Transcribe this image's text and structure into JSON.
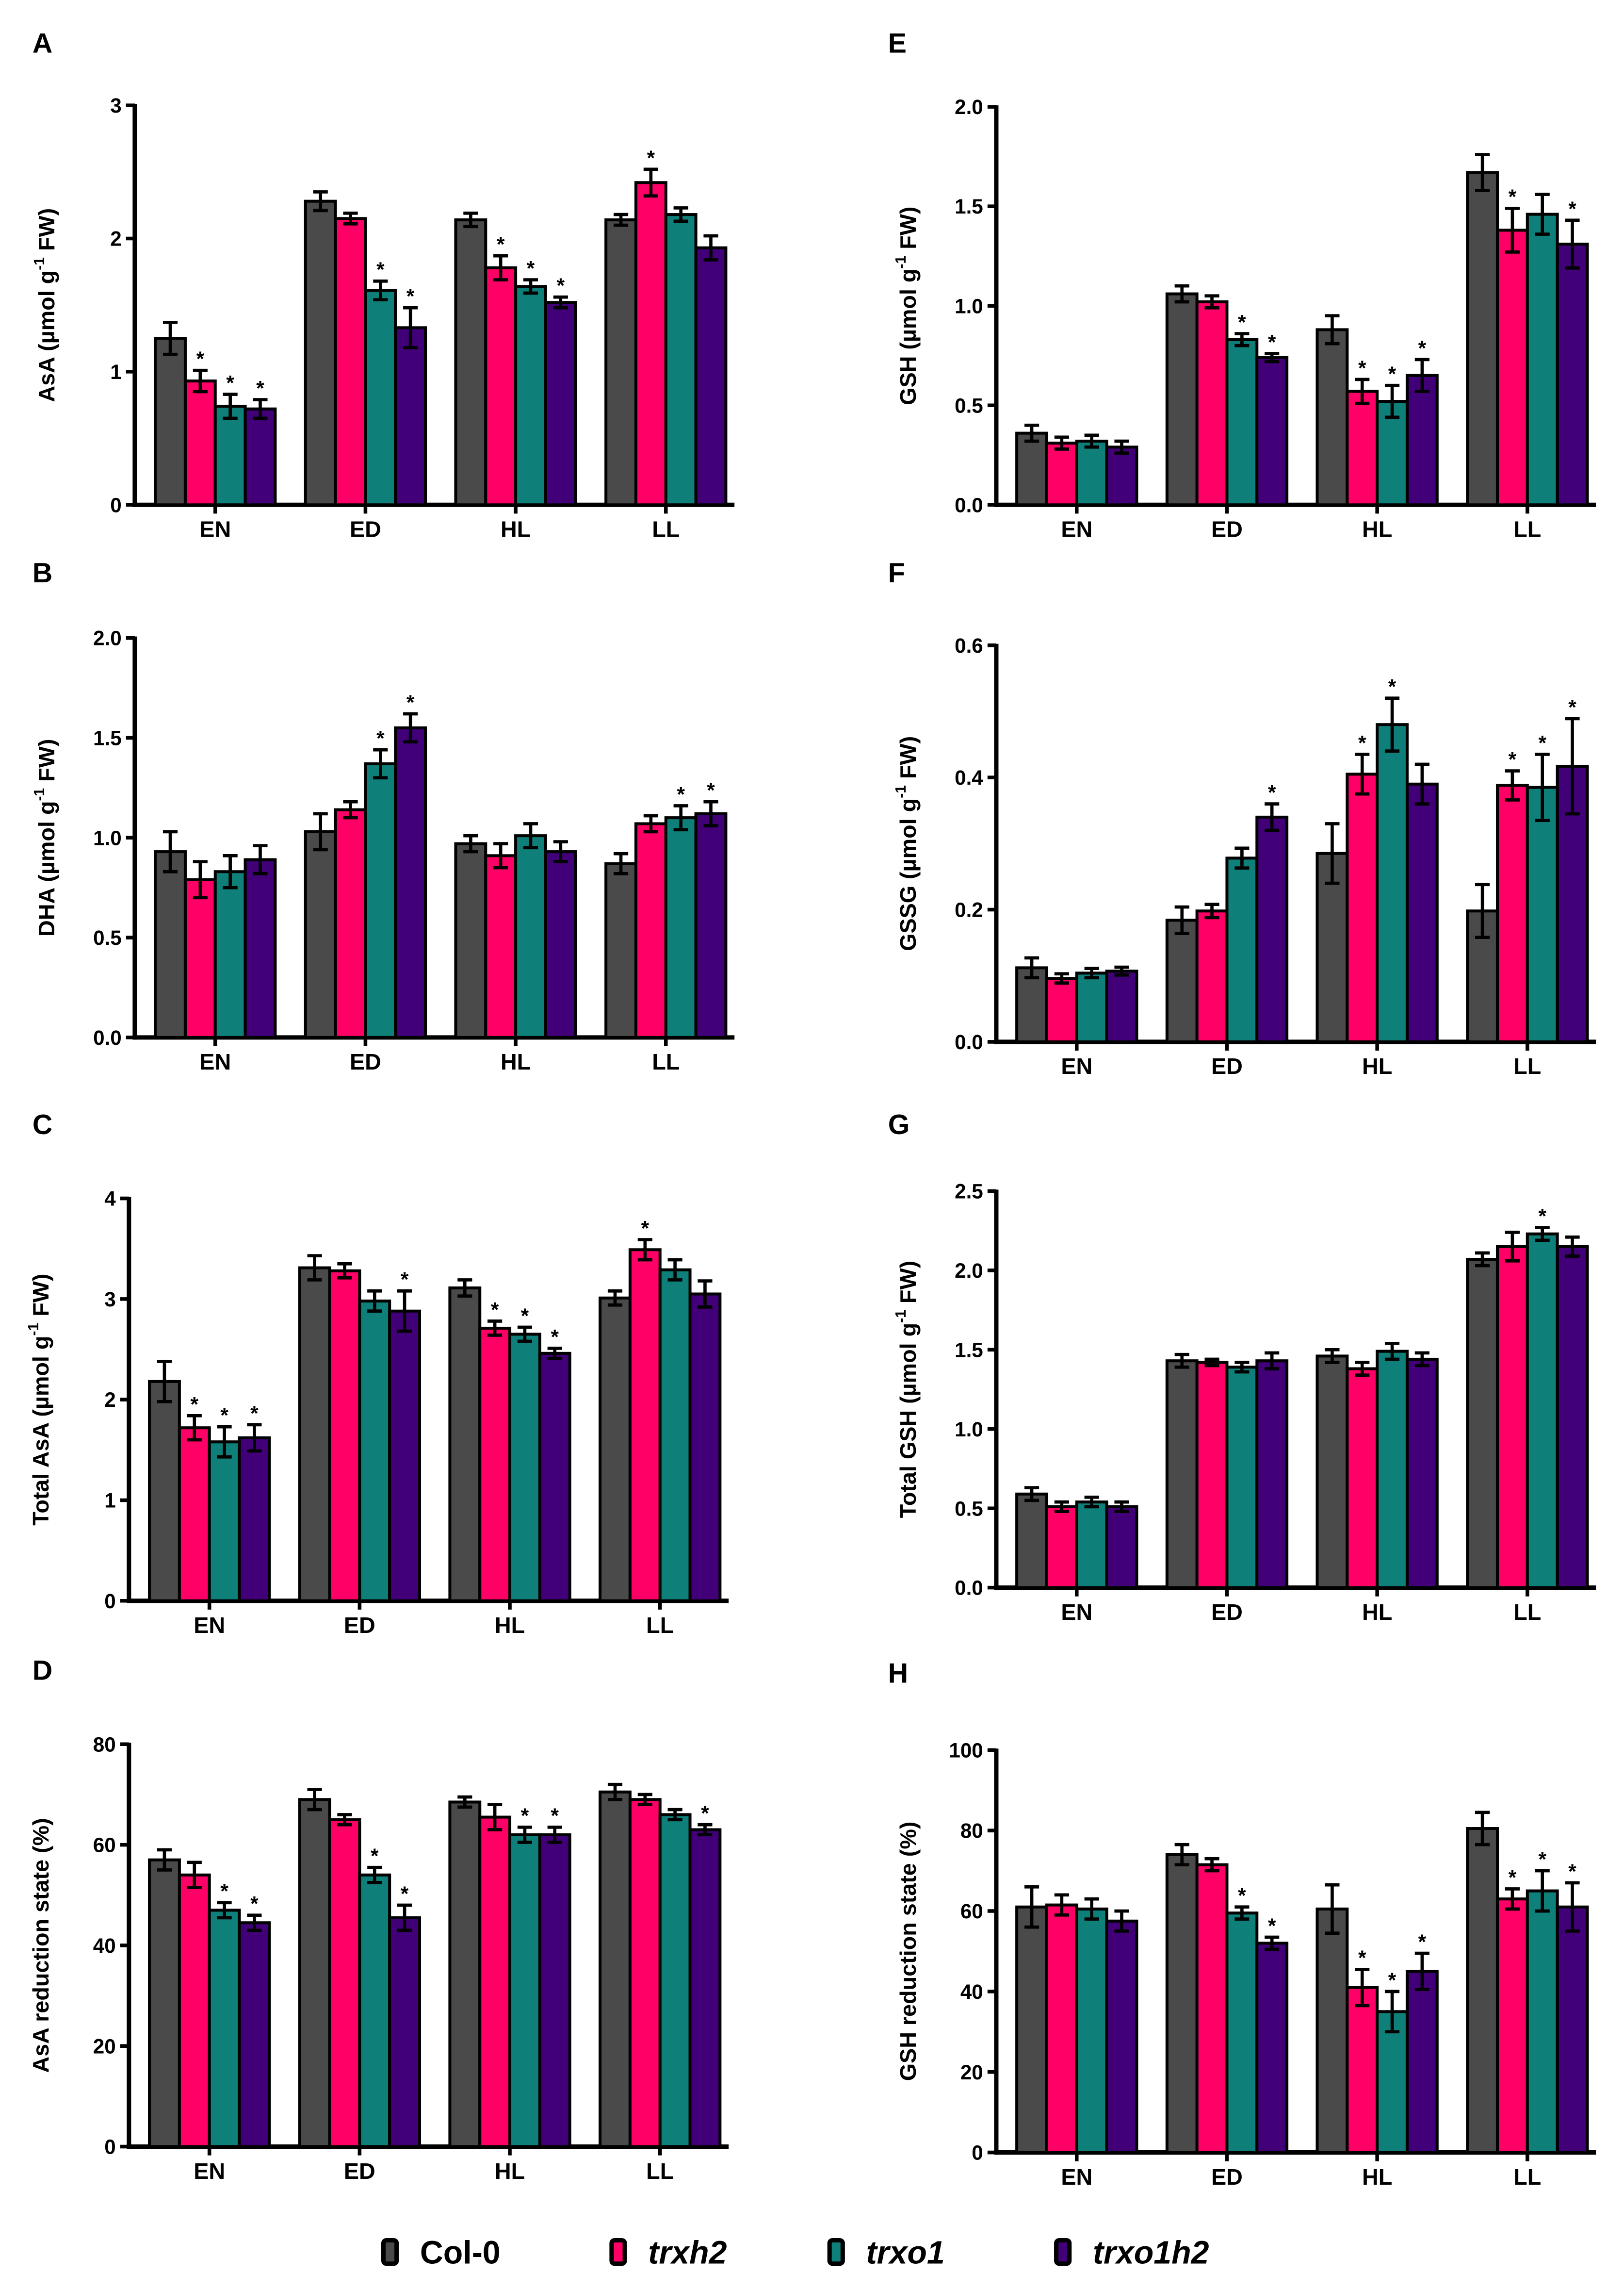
{
  "colors": {
    "Col-0": "#4a4a4a",
    "trxh2": "#ff0066",
    "trxo1": "#0f7f7a",
    "trxo1h2": "#420078"
  },
  "legend": [
    {
      "label": "Col-0",
      "italic": false
    },
    {
      "label": "trxh2",
      "italic": true
    },
    {
      "label": "trxo1",
      "italic": true
    },
    {
      "label": "trxo1h2",
      "italic": true
    }
  ],
  "chart_data": [
    {
      "panel": "A",
      "type": "bar",
      "ylabel": "AsA (µmol g-1 FW)",
      "ylabel_main": "AsA (µmol g",
      "ylabel_tail": " FW)",
      "ylim": [
        0,
        3
      ],
      "yticks": [
        "0",
        "1",
        "2",
        "3"
      ],
      "ytick_values": [
        0,
        1,
        2,
        3
      ],
      "categories": [
        "EN",
        "ED",
        "HL",
        "LL"
      ],
      "series": [
        {
          "name": "Col-0",
          "values": [
            1.25,
            2.28,
            2.14,
            2.14
          ],
          "errors": [
            0.12,
            0.07,
            0.05,
            0.04
          ],
          "sig": [
            0,
            0,
            0,
            0
          ]
        },
        {
          "name": "trxh2",
          "values": [
            0.93,
            2.15,
            1.78,
            2.42
          ],
          "errors": [
            0.08,
            0.04,
            0.09,
            0.1
          ],
          "sig": [
            1,
            0,
            1,
            1
          ]
        },
        {
          "name": "trxo1",
          "values": [
            0.74,
            1.61,
            1.64,
            2.18
          ],
          "errors": [
            0.09,
            0.07,
            0.05,
            0.05
          ],
          "sig": [
            1,
            1,
            1,
            0
          ]
        },
        {
          "name": "trxo1h2",
          "values": [
            0.72,
            1.33,
            1.52,
            1.93
          ],
          "errors": [
            0.07,
            0.15,
            0.04,
            0.09
          ],
          "sig": [
            1,
            1,
            1,
            0
          ]
        }
      ]
    },
    {
      "panel": "B",
      "type": "bar",
      "ylabel": "DHA (µmol g-1 FW)",
      "ylabel_main": "DHA (µmol g",
      "ylabel_tail": " FW)",
      "ylim": [
        0,
        2
      ],
      "yticks": [
        "0.0",
        "0.5",
        "1.0",
        "1.5",
        "2.0"
      ],
      "ytick_values": [
        0,
        0.5,
        1,
        1.5,
        2
      ],
      "categories": [
        "EN",
        "ED",
        "HL",
        "LL"
      ],
      "series": [
        {
          "name": "Col-0",
          "values": [
            0.93,
            1.03,
            0.97,
            0.87
          ],
          "errors": [
            0.1,
            0.09,
            0.04,
            0.05
          ],
          "sig": [
            0,
            0,
            0,
            0
          ]
        },
        {
          "name": "trxh2",
          "values": [
            0.79,
            1.14,
            0.91,
            1.07
          ],
          "errors": [
            0.09,
            0.04,
            0.06,
            0.04
          ],
          "sig": [
            0,
            0,
            0,
            0
          ]
        },
        {
          "name": "trxo1",
          "values": [
            0.83,
            1.37,
            1.01,
            1.1
          ],
          "errors": [
            0.08,
            0.07,
            0.06,
            0.06
          ],
          "sig": [
            0,
            1,
            0,
            1
          ]
        },
        {
          "name": "trxo1h2",
          "values": [
            0.89,
            1.55,
            0.93,
            1.12
          ],
          "errors": [
            0.07,
            0.07,
            0.05,
            0.06
          ],
          "sig": [
            0,
            1,
            0,
            1
          ]
        }
      ]
    },
    {
      "panel": "C",
      "type": "bar",
      "ylabel": "Total AsA (µmol g-1 FW)",
      "ylabel_main": "Total AsA (µmol g",
      "ylabel_tail": " FW)",
      "ylim": [
        0,
        4
      ],
      "yticks": [
        "0",
        "1",
        "2",
        "3",
        "4"
      ],
      "ytick_values": [
        0,
        1,
        2,
        3,
        4
      ],
      "categories": [
        "EN",
        "ED",
        "HL",
        "LL"
      ],
      "series": [
        {
          "name": "Col-0",
          "values": [
            2.18,
            3.31,
            3.11,
            3.01
          ],
          "errors": [
            0.2,
            0.12,
            0.08,
            0.07
          ],
          "sig": [
            0,
            0,
            0,
            0
          ]
        },
        {
          "name": "trxh2",
          "values": [
            1.72,
            3.28,
            2.71,
            3.49
          ],
          "errors": [
            0.12,
            0.07,
            0.07,
            0.1
          ],
          "sig": [
            1,
            0,
            1,
            1
          ]
        },
        {
          "name": "trxo1",
          "values": [
            1.58,
            2.98,
            2.65,
            3.29
          ],
          "errors": [
            0.15,
            0.1,
            0.07,
            0.1
          ],
          "sig": [
            1,
            0,
            1,
            0
          ]
        },
        {
          "name": "trxo1h2",
          "values": [
            1.62,
            2.88,
            2.46,
            3.05
          ],
          "errors": [
            0.13,
            0.2,
            0.05,
            0.13
          ],
          "sig": [
            1,
            1,
            1,
            0
          ]
        }
      ]
    },
    {
      "panel": "D",
      "type": "bar",
      "ylabel": "AsA reduction state (%)",
      "ylabel_main": "AsA reduction state (%)",
      "ylabel_tail": "",
      "ylim": [
        0,
        80
      ],
      "yticks": [
        "0",
        "20",
        "40",
        "60",
        "80"
      ],
      "ytick_values": [
        0,
        20,
        40,
        60,
        80
      ],
      "categories": [
        "EN",
        "ED",
        "HL",
        "LL"
      ],
      "series": [
        {
          "name": "Col-0",
          "values": [
            57,
            69,
            68.5,
            70.5
          ],
          "errors": [
            2,
            2,
            1,
            1.5
          ],
          "sig": [
            0,
            0,
            0,
            0
          ]
        },
        {
          "name": "trxh2",
          "values": [
            54,
            65,
            65.5,
            69
          ],
          "errors": [
            2.5,
            1,
            2.5,
            1
          ],
          "sig": [
            0,
            0,
            0,
            0
          ]
        },
        {
          "name": "trxo1",
          "values": [
            47,
            54,
            62,
            66
          ],
          "errors": [
            1.5,
            1.5,
            1.5,
            1
          ],
          "sig": [
            1,
            1,
            1,
            0
          ]
        },
        {
          "name": "trxo1h2",
          "values": [
            44.5,
            45.5,
            62,
            63
          ],
          "errors": [
            1.5,
            2.5,
            1.5,
            1
          ],
          "sig": [
            1,
            1,
            1,
            1
          ]
        }
      ]
    },
    {
      "panel": "E",
      "type": "bar",
      "ylabel": "GSH (µmol g-1 FW)",
      "ylabel_main": "GSH (µmol g",
      "ylabel_tail": " FW)",
      "ylim": [
        0,
        2
      ],
      "yticks": [
        "0.0",
        "0.5",
        "1.0",
        "1.5",
        "2.0"
      ],
      "ytick_values": [
        0,
        0.5,
        1,
        1.5,
        2
      ],
      "categories": [
        "EN",
        "ED",
        "HL",
        "LL"
      ],
      "series": [
        {
          "name": "Col-0",
          "values": [
            0.36,
            1.06,
            0.88,
            1.67
          ],
          "errors": [
            0.04,
            0.04,
            0.07,
            0.09
          ],
          "sig": [
            0,
            0,
            0,
            0
          ]
        },
        {
          "name": "trxh2",
          "values": [
            0.31,
            1.02,
            0.57,
            1.38
          ],
          "errors": [
            0.03,
            0.03,
            0.06,
            0.11
          ],
          "sig": [
            0,
            0,
            1,
            1
          ]
        },
        {
          "name": "trxo1",
          "values": [
            0.32,
            0.83,
            0.52,
            1.46
          ],
          "errors": [
            0.03,
            0.03,
            0.08,
            0.1
          ],
          "sig": [
            0,
            1,
            1,
            0
          ]
        },
        {
          "name": "trxo1h2",
          "values": [
            0.29,
            0.74,
            0.65,
            1.31
          ],
          "errors": [
            0.03,
            0.02,
            0.08,
            0.12
          ],
          "sig": [
            0,
            1,
            1,
            1
          ]
        }
      ]
    },
    {
      "panel": "F",
      "type": "bar",
      "ylabel": "GSSG (µmol g-1 FW)",
      "ylabel_main": "GSSG (µmol g",
      "ylabel_tail": " FW)",
      "ylim": [
        0,
        0.6
      ],
      "yticks": [
        "0.0",
        "0.2",
        "0.4",
        "0.6"
      ],
      "ytick_values": [
        0,
        0.2,
        0.4,
        0.6
      ],
      "categories": [
        "EN",
        "ED",
        "HL",
        "LL"
      ],
      "series": [
        {
          "name": "Col-0",
          "values": [
            0.112,
            0.184,
            0.285,
            0.198
          ],
          "errors": [
            0.015,
            0.02,
            0.045,
            0.04
          ],
          "sig": [
            0,
            0,
            0,
            0
          ]
        },
        {
          "name": "trxh2",
          "values": [
            0.096,
            0.198,
            0.405,
            0.388
          ],
          "errors": [
            0.007,
            0.01,
            0.03,
            0.022
          ],
          "sig": [
            0,
            0,
            1,
            1
          ]
        },
        {
          "name": "trxo1",
          "values": [
            0.104,
            0.278,
            0.48,
            0.385
          ],
          "errors": [
            0.007,
            0.015,
            0.04,
            0.05
          ],
          "sig": [
            0,
            0,
            1,
            1
          ]
        },
        {
          "name": "trxo1h2",
          "values": [
            0.107,
            0.34,
            0.39,
            0.417
          ],
          "errors": [
            0.006,
            0.02,
            0.03,
            0.072
          ],
          "sig": [
            0,
            1,
            0,
            1
          ]
        }
      ]
    },
    {
      "panel": "G",
      "type": "bar",
      "ylabel": "Total GSH (µmol g-1 FW)",
      "ylabel_main": "Total GSH (µmol g",
      "ylabel_tail": " FW)",
      "ylim": [
        0,
        2.5
      ],
      "yticks": [
        "0.0",
        "0.5",
        "1.0",
        "1.5",
        "2.0",
        "2.5"
      ],
      "ytick_values": [
        0,
        0.5,
        1,
        1.5,
        2,
        2.5
      ],
      "categories": [
        "EN",
        "ED",
        "HL",
        "LL"
      ],
      "series": [
        {
          "name": "Col-0",
          "values": [
            0.59,
            1.43,
            1.46,
            2.07
          ],
          "errors": [
            0.04,
            0.04,
            0.04,
            0.04
          ],
          "sig": [
            0,
            0,
            0,
            0
          ]
        },
        {
          "name": "trxh2",
          "values": [
            0.51,
            1.42,
            1.38,
            2.15
          ],
          "errors": [
            0.03,
            0.02,
            0.04,
            0.09
          ],
          "sig": [
            0,
            0,
            0,
            0
          ]
        },
        {
          "name": "trxo1",
          "values": [
            0.54,
            1.39,
            1.49,
            2.23
          ],
          "errors": [
            0.03,
            0.03,
            0.05,
            0.04
          ],
          "sig": [
            0,
            0,
            0,
            1
          ]
        },
        {
          "name": "trxo1h2",
          "values": [
            0.51,
            1.43,
            1.44,
            2.15
          ],
          "errors": [
            0.03,
            0.05,
            0.04,
            0.06
          ],
          "sig": [
            0,
            0,
            0,
            0
          ]
        }
      ]
    },
    {
      "panel": "H",
      "type": "bar",
      "ylabel": "GSH reduction state (%)",
      "ylabel_main": "GSH reduction state (%)",
      "ylabel_tail": "",
      "ylim": [
        0,
        100
      ],
      "yticks": [
        "0",
        "20",
        "40",
        "60",
        "80",
        "100"
      ],
      "ytick_values": [
        0,
        20,
        40,
        60,
        80,
        100
      ],
      "categories": [
        "EN",
        "ED",
        "HL",
        "LL"
      ],
      "series": [
        {
          "name": "Col-0",
          "values": [
            61,
            74,
            60.5,
            80.5
          ],
          "errors": [
            5,
            2.5,
            6,
            4
          ],
          "sig": [
            0,
            0,
            0,
            0
          ]
        },
        {
          "name": "trxh2",
          "values": [
            61.5,
            71.5,
            41,
            63
          ],
          "errors": [
            2.5,
            1.5,
            4.5,
            2.5
          ],
          "sig": [
            0,
            0,
            1,
            1
          ]
        },
        {
          "name": "trxo1",
          "values": [
            60.5,
            59.5,
            35,
            65
          ],
          "errors": [
            2.5,
            1.5,
            5,
            5
          ],
          "sig": [
            0,
            1,
            1,
            1
          ]
        },
        {
          "name": "trxo1h2",
          "values": [
            57.5,
            52,
            45,
            61
          ],
          "errors": [
            2.5,
            1.5,
            4.5,
            6
          ],
          "sig": [
            0,
            1,
            1,
            1
          ]
        }
      ]
    }
  ],
  "significance_marker": "*",
  "superscript": "-1"
}
